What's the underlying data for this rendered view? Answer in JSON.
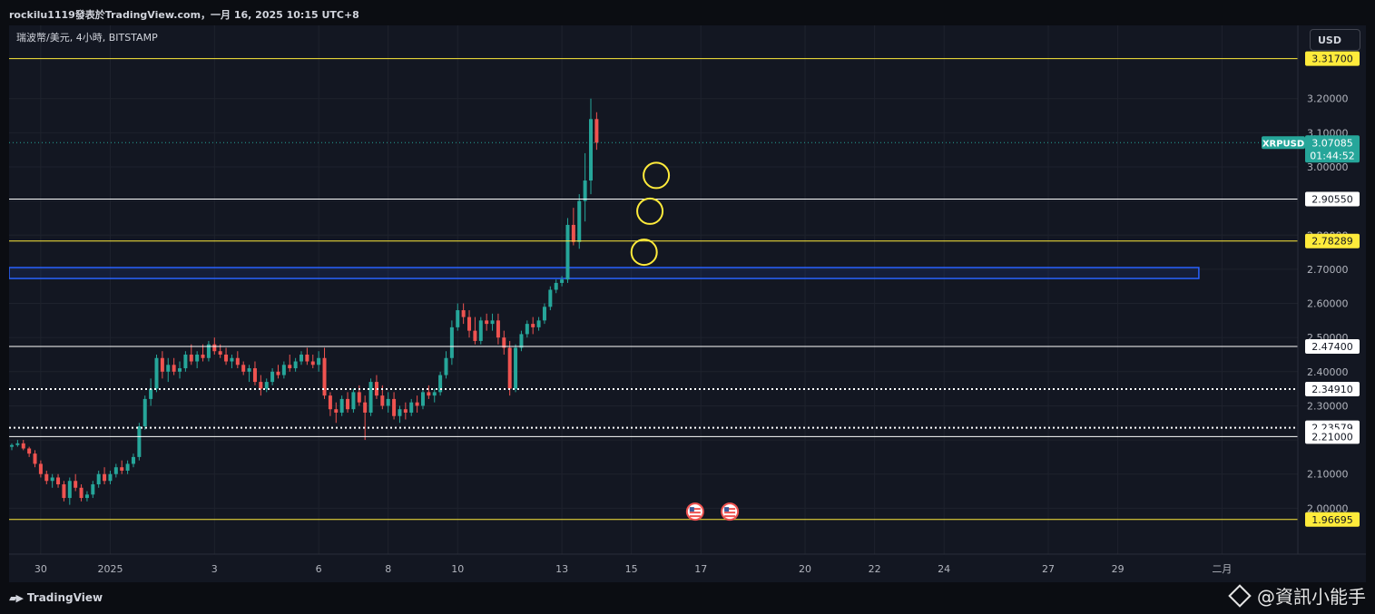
{
  "header": {
    "title": "rockilu1119發表於TradingView.com，一月 16, 2025 10:15 UTC+8"
  },
  "symbol_label": "瑞波幣/美元, 4小時, BITSTAMP",
  "currency_button": "USD",
  "footer": {
    "logo_text": "TradingView",
    "watermark": "@資訊小能手"
  },
  "colors": {
    "bg": "#131722",
    "up": "#26a69a",
    "down": "#ef5350",
    "yellow": "#ffeb3b",
    "white": "#ffffff",
    "blue": "#2962ff",
    "grid": "#1e222d"
  },
  "chart_data": {
    "type": "candlestick",
    "title": "",
    "symbol": "XRPUSD",
    "exchange": "BITSTAMP",
    "timeframe": "4小時",
    "ylim": [
      1.9,
      3.34
    ],
    "y_ticks": [
      "3.20000",
      "3.10000",
      "3.00000",
      "2.90000",
      "2.80000",
      "2.70000",
      "2.60000",
      "2.50000",
      "2.40000",
      "2.30000",
      "2.20000",
      "2.10000",
      "2.00000"
    ],
    "x_ticks": [
      {
        "label": "30",
        "t": 5
      },
      {
        "label": "2025",
        "t": 17
      },
      {
        "label": "3",
        "t": 35
      },
      {
        "label": "6",
        "t": 53
      },
      {
        "label": "8",
        "t": 65
      },
      {
        "label": "10",
        "t": 77
      },
      {
        "label": "13",
        "t": 95
      },
      {
        "label": "15",
        "t": 107
      },
      {
        "label": "17",
        "t": 119
      },
      {
        "label": "20",
        "t": 137
      },
      {
        "label": "22",
        "t": 149
      },
      {
        "label": "24",
        "t": 161
      },
      {
        "label": "27",
        "t": 179
      },
      {
        "label": "29",
        "t": 191
      },
      {
        "label": "二月",
        "t": 209
      }
    ],
    "last_price": {
      "symbol_tag": "XRPUSD",
      "value": "3.07085",
      "countdown": "01:44:52",
      "y": 3.07085
    },
    "horizontal_lines": [
      {
        "label": "3.31700",
        "y": 3.317,
        "color": "yellow",
        "style": "solid"
      },
      {
        "label": "2.90550",
        "y": 2.9055,
        "color": "white",
        "style": "solid"
      },
      {
        "label": "2.78289",
        "y": 2.78289,
        "color": "yellow",
        "style": "solid"
      },
      {
        "label": "2.47400",
        "y": 2.474,
        "color": "white",
        "style": "solid"
      },
      {
        "label": "2.34910",
        "y": 2.3491,
        "color": "white",
        "style": "dotted"
      },
      {
        "label": "2.23579",
        "y": 2.23579,
        "color": "white",
        "style": "dotted"
      },
      {
        "label": "2.21000",
        "y": 2.21,
        "color": "white",
        "style": "solid"
      },
      {
        "label": "1.96695",
        "y": 1.96695,
        "color": "yellow",
        "style": "solid"
      }
    ],
    "zone": {
      "y_top": 2.705,
      "y_bottom": 2.673,
      "t_end": 205
    },
    "circles": [
      {
        "t": 111.3,
        "y": 2.975
      },
      {
        "t": 110.2,
        "y": 2.87
      },
      {
        "t": 109.2,
        "y": 2.75
      }
    ],
    "event_flags": [
      {
        "t": 118,
        "name": "us-flag"
      },
      {
        "t": 124,
        "name": "us-flag"
      }
    ],
    "candles": [
      {
        "t": 0,
        "o": 2.18,
        "h": 2.19,
        "l": 2.17,
        "c": 2.185
      },
      {
        "t": 1,
        "o": 2.185,
        "h": 2.2,
        "l": 2.18,
        "c": 2.19
      },
      {
        "t": 2,
        "o": 2.19,
        "h": 2.2,
        "l": 2.17,
        "c": 2.175
      },
      {
        "t": 3,
        "o": 2.175,
        "h": 2.18,
        "l": 2.15,
        "c": 2.16
      },
      {
        "t": 4,
        "o": 2.16,
        "h": 2.17,
        "l": 2.12,
        "c": 2.13
      },
      {
        "t": 5,
        "o": 2.13,
        "h": 2.14,
        "l": 2.09,
        "c": 2.1
      },
      {
        "t": 6,
        "o": 2.1,
        "h": 2.11,
        "l": 2.07,
        "c": 2.08
      },
      {
        "t": 7,
        "o": 2.08,
        "h": 2.1,
        "l": 2.06,
        "c": 2.09
      },
      {
        "t": 8,
        "o": 2.09,
        "h": 2.1,
        "l": 2.06,
        "c": 2.07
      },
      {
        "t": 9,
        "o": 2.07,
        "h": 2.08,
        "l": 2.02,
        "c": 2.03
      },
      {
        "t": 10,
        "o": 2.03,
        "h": 2.09,
        "l": 2.01,
        "c": 2.08
      },
      {
        "t": 11,
        "o": 2.08,
        "h": 2.1,
        "l": 2.05,
        "c": 2.06
      },
      {
        "t": 12,
        "o": 2.06,
        "h": 2.07,
        "l": 2.02,
        "c": 2.03
      },
      {
        "t": 13,
        "o": 2.03,
        "h": 2.05,
        "l": 2.02,
        "c": 2.04
      },
      {
        "t": 14,
        "o": 2.04,
        "h": 2.08,
        "l": 2.03,
        "c": 2.07
      },
      {
        "t": 15,
        "o": 2.07,
        "h": 2.11,
        "l": 2.06,
        "c": 2.1
      },
      {
        "t": 16,
        "o": 2.1,
        "h": 2.12,
        "l": 2.07,
        "c": 2.08
      },
      {
        "t": 17,
        "o": 2.08,
        "h": 2.11,
        "l": 2.07,
        "c": 2.1
      },
      {
        "t": 18,
        "o": 2.1,
        "h": 2.13,
        "l": 2.09,
        "c": 2.12
      },
      {
        "t": 19,
        "o": 2.12,
        "h": 2.14,
        "l": 2.1,
        "c": 2.11
      },
      {
        "t": 20,
        "o": 2.11,
        "h": 2.14,
        "l": 2.1,
        "c": 2.13
      },
      {
        "t": 21,
        "o": 2.13,
        "h": 2.16,
        "l": 2.12,
        "c": 2.15
      },
      {
        "t": 22,
        "o": 2.15,
        "h": 2.25,
        "l": 2.14,
        "c": 2.24
      },
      {
        "t": 23,
        "o": 2.24,
        "h": 2.33,
        "l": 2.23,
        "c": 2.32
      },
      {
        "t": 24,
        "o": 2.32,
        "h": 2.38,
        "l": 2.3,
        "c": 2.35
      },
      {
        "t": 25,
        "o": 2.35,
        "h": 2.45,
        "l": 2.34,
        "c": 2.44
      },
      {
        "t": 26,
        "o": 2.44,
        "h": 2.46,
        "l": 2.38,
        "c": 2.4
      },
      {
        "t": 27,
        "o": 2.4,
        "h": 2.44,
        "l": 2.37,
        "c": 2.42
      },
      {
        "t": 28,
        "o": 2.42,
        "h": 2.44,
        "l": 2.39,
        "c": 2.4
      },
      {
        "t": 29,
        "o": 2.4,
        "h": 2.43,
        "l": 2.38,
        "c": 2.41
      },
      {
        "t": 30,
        "o": 2.41,
        "h": 2.46,
        "l": 2.4,
        "c": 2.45
      },
      {
        "t": 31,
        "o": 2.45,
        "h": 2.48,
        "l": 2.42,
        "c": 2.43
      },
      {
        "t": 32,
        "o": 2.43,
        "h": 2.46,
        "l": 2.41,
        "c": 2.45
      },
      {
        "t": 33,
        "o": 2.45,
        "h": 2.48,
        "l": 2.43,
        "c": 2.44
      },
      {
        "t": 34,
        "o": 2.44,
        "h": 2.49,
        "l": 2.43,
        "c": 2.48
      },
      {
        "t": 35,
        "o": 2.48,
        "h": 2.5,
        "l": 2.45,
        "c": 2.46
      },
      {
        "t": 36,
        "o": 2.46,
        "h": 2.48,
        "l": 2.44,
        "c": 2.45
      },
      {
        "t": 37,
        "o": 2.45,
        "h": 2.47,
        "l": 2.42,
        "c": 2.43
      },
      {
        "t": 38,
        "o": 2.43,
        "h": 2.45,
        "l": 2.41,
        "c": 2.44
      },
      {
        "t": 39,
        "o": 2.44,
        "h": 2.46,
        "l": 2.41,
        "c": 2.42
      },
      {
        "t": 40,
        "o": 2.42,
        "h": 2.43,
        "l": 2.39,
        "c": 2.4
      },
      {
        "t": 41,
        "o": 2.4,
        "h": 2.42,
        "l": 2.37,
        "c": 2.41
      },
      {
        "t": 42,
        "o": 2.41,
        "h": 2.43,
        "l": 2.36,
        "c": 2.37
      },
      {
        "t": 43,
        "o": 2.37,
        "h": 2.39,
        "l": 2.33,
        "c": 2.35
      },
      {
        "t": 44,
        "o": 2.35,
        "h": 2.38,
        "l": 2.34,
        "c": 2.37
      },
      {
        "t": 45,
        "o": 2.37,
        "h": 2.41,
        "l": 2.36,
        "c": 2.4
      },
      {
        "t": 46,
        "o": 2.4,
        "h": 2.42,
        "l": 2.38,
        "c": 2.39
      },
      {
        "t": 47,
        "o": 2.39,
        "h": 2.43,
        "l": 2.38,
        "c": 2.42
      },
      {
        "t": 48,
        "o": 2.42,
        "h": 2.45,
        "l": 2.4,
        "c": 2.41
      },
      {
        "t": 49,
        "o": 2.41,
        "h": 2.44,
        "l": 2.4,
        "c": 2.43
      },
      {
        "t": 50,
        "o": 2.43,
        "h": 2.46,
        "l": 2.42,
        "c": 2.45
      },
      {
        "t": 51,
        "o": 2.45,
        "h": 2.47,
        "l": 2.42,
        "c": 2.43
      },
      {
        "t": 52,
        "o": 2.43,
        "h": 2.45,
        "l": 2.41,
        "c": 2.42
      },
      {
        "t": 53,
        "o": 2.42,
        "h": 2.46,
        "l": 2.4,
        "c": 2.44
      },
      {
        "t": 54,
        "o": 2.44,
        "h": 2.47,
        "l": 2.32,
        "c": 2.33
      },
      {
        "t": 55,
        "o": 2.33,
        "h": 2.34,
        "l": 2.27,
        "c": 2.29
      },
      {
        "t": 56,
        "o": 2.29,
        "h": 2.31,
        "l": 2.25,
        "c": 2.28
      },
      {
        "t": 57,
        "o": 2.28,
        "h": 2.33,
        "l": 2.27,
        "c": 2.32
      },
      {
        "t": 58,
        "o": 2.32,
        "h": 2.34,
        "l": 2.28,
        "c": 2.29
      },
      {
        "t": 59,
        "o": 2.29,
        "h": 2.35,
        "l": 2.28,
        "c": 2.34
      },
      {
        "t": 60,
        "o": 2.34,
        "h": 2.36,
        "l": 2.3,
        "c": 2.31
      },
      {
        "t": 61,
        "o": 2.31,
        "h": 2.33,
        "l": 2.2,
        "c": 2.28
      },
      {
        "t": 62,
        "o": 2.28,
        "h": 2.38,
        "l": 2.27,
        "c": 2.37
      },
      {
        "t": 63,
        "o": 2.37,
        "h": 2.39,
        "l": 2.32,
        "c": 2.33
      },
      {
        "t": 64,
        "o": 2.33,
        "h": 2.36,
        "l": 2.29,
        "c": 2.3
      },
      {
        "t": 65,
        "o": 2.3,
        "h": 2.34,
        "l": 2.28,
        "c": 2.32
      },
      {
        "t": 66,
        "o": 2.32,
        "h": 2.34,
        "l": 2.26,
        "c": 2.27
      },
      {
        "t": 67,
        "o": 2.27,
        "h": 2.3,
        "l": 2.25,
        "c": 2.29
      },
      {
        "t": 68,
        "o": 2.29,
        "h": 2.31,
        "l": 2.26,
        "c": 2.28
      },
      {
        "t": 69,
        "o": 2.28,
        "h": 2.32,
        "l": 2.27,
        "c": 2.31
      },
      {
        "t": 70,
        "o": 2.31,
        "h": 2.33,
        "l": 2.28,
        "c": 2.3
      },
      {
        "t": 71,
        "o": 2.3,
        "h": 2.35,
        "l": 2.29,
        "c": 2.34
      },
      {
        "t": 72,
        "o": 2.34,
        "h": 2.36,
        "l": 2.32,
        "c": 2.33
      },
      {
        "t": 73,
        "o": 2.33,
        "h": 2.35,
        "l": 2.31,
        "c": 2.34
      },
      {
        "t": 74,
        "o": 2.34,
        "h": 2.4,
        "l": 2.33,
        "c": 2.39
      },
      {
        "t": 75,
        "o": 2.39,
        "h": 2.46,
        "l": 2.38,
        "c": 2.44
      },
      {
        "t": 76,
        "o": 2.44,
        "h": 2.55,
        "l": 2.42,
        "c": 2.53
      },
      {
        "t": 77,
        "o": 2.53,
        "h": 2.6,
        "l": 2.52,
        "c": 2.58
      },
      {
        "t": 78,
        "o": 2.58,
        "h": 2.6,
        "l": 2.54,
        "c": 2.56
      },
      {
        "t": 79,
        "o": 2.56,
        "h": 2.58,
        "l": 2.5,
        "c": 2.52
      },
      {
        "t": 80,
        "o": 2.52,
        "h": 2.56,
        "l": 2.48,
        "c": 2.49
      },
      {
        "t": 81,
        "o": 2.49,
        "h": 2.56,
        "l": 2.48,
        "c": 2.55
      },
      {
        "t": 82,
        "o": 2.55,
        "h": 2.57,
        "l": 2.52,
        "c": 2.54
      },
      {
        "t": 83,
        "o": 2.54,
        "h": 2.57,
        "l": 2.52,
        "c": 2.55
      },
      {
        "t": 84,
        "o": 2.55,
        "h": 2.57,
        "l": 2.48,
        "c": 2.5
      },
      {
        "t": 85,
        "o": 2.5,
        "h": 2.52,
        "l": 2.45,
        "c": 2.47
      },
      {
        "t": 86,
        "o": 2.47,
        "h": 2.49,
        "l": 2.33,
        "c": 2.35
      },
      {
        "t": 87,
        "o": 2.35,
        "h": 2.48,
        "l": 2.34,
        "c": 2.47
      },
      {
        "t": 88,
        "o": 2.47,
        "h": 2.52,
        "l": 2.46,
        "c": 2.51
      },
      {
        "t": 89,
        "o": 2.51,
        "h": 2.55,
        "l": 2.5,
        "c": 2.54
      },
      {
        "t": 90,
        "o": 2.54,
        "h": 2.56,
        "l": 2.51,
        "c": 2.53
      },
      {
        "t": 91,
        "o": 2.53,
        "h": 2.56,
        "l": 2.52,
        "c": 2.55
      },
      {
        "t": 92,
        "o": 2.55,
        "h": 2.6,
        "l": 2.54,
        "c": 2.59
      },
      {
        "t": 93,
        "o": 2.59,
        "h": 2.65,
        "l": 2.58,
        "c": 2.64
      },
      {
        "t": 94,
        "o": 2.64,
        "h": 2.67,
        "l": 2.63,
        "c": 2.66
      },
      {
        "t": 95,
        "o": 2.66,
        "h": 2.68,
        "l": 2.65,
        "c": 2.67
      },
      {
        "t": 96,
        "o": 2.67,
        "h": 2.85,
        "l": 2.66,
        "c": 2.83
      },
      {
        "t": 97,
        "o": 2.83,
        "h": 2.88,
        "l": 2.77,
        "c": 2.78
      },
      {
        "t": 98,
        "o": 2.78,
        "h": 2.92,
        "l": 2.76,
        "c": 2.9
      },
      {
        "t": 99,
        "o": 2.9,
        "h": 3.04,
        "l": 2.84,
        "c": 2.96
      },
      {
        "t": 100,
        "o": 2.96,
        "h": 3.2,
        "l": 2.92,
        "c": 3.14
      },
      {
        "t": 101,
        "o": 3.14,
        "h": 3.16,
        "l": 3.05,
        "c": 3.07085
      }
    ]
  }
}
